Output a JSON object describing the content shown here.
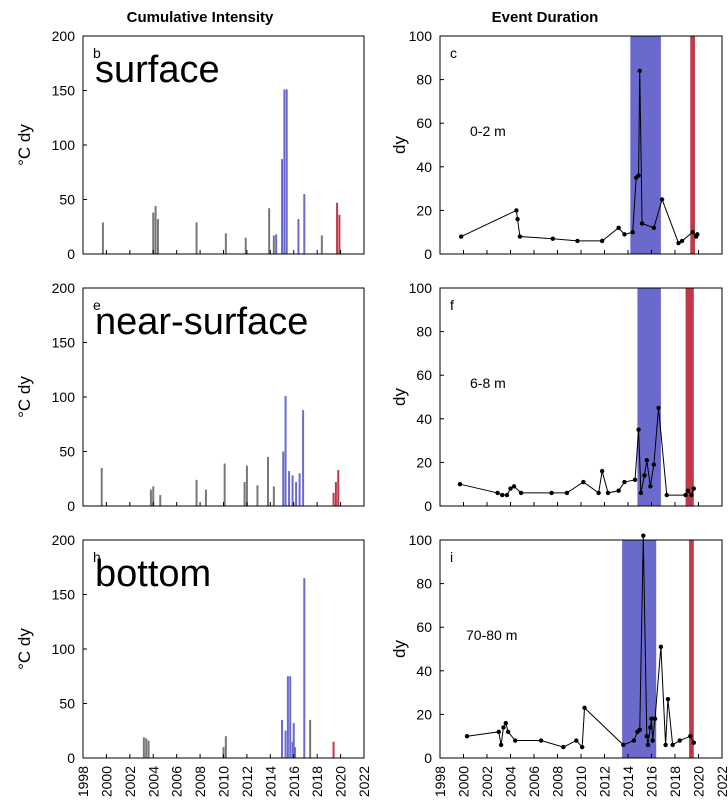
{
  "colors": {
    "marine_heatwave_blue": "#6a6acd",
    "marine_heatwave_red": "#c0394b",
    "black": "#000000",
    "gray": "#777777"
  },
  "column_titles": {
    "left": "Cumulative Intensity",
    "right": "Event Duration"
  },
  "x_tick_labels": [
    "1998",
    "2000",
    "2002",
    "2004",
    "2006",
    "2008",
    "2010",
    "2012",
    "2014",
    "2016",
    "2018",
    "2020",
    "2022"
  ],
  "chart_data": [
    {
      "type": "bar",
      "panel": "b",
      "big_label": "surface",
      "ylabel": "°C dy",
      "ylim": [
        0,
        200
      ],
      "yticks": [
        0,
        50,
        100,
        150,
        200
      ],
      "xlim": [
        1998,
        2022
      ],
      "bars": [
        {
          "x": 1999.7,
          "v": 29,
          "c": "gray"
        },
        {
          "x": 2004.0,
          "v": 38,
          "c": "gray"
        },
        {
          "x": 2004.2,
          "v": 44,
          "c": "gray"
        },
        {
          "x": 2004.4,
          "v": 32,
          "c": "gray"
        },
        {
          "x": 2007.7,
          "v": 29,
          "c": "gray"
        },
        {
          "x": 2010.2,
          "v": 19,
          "c": "gray"
        },
        {
          "x": 2011.9,
          "v": 15,
          "c": "gray"
        },
        {
          "x": 2013.9,
          "v": 42,
          "c": "gray"
        },
        {
          "x": 2014.3,
          "v": 17,
          "c": "gray"
        },
        {
          "x": 2014.5,
          "v": 18,
          "c": "blue"
        },
        {
          "x": 2015.0,
          "v": 87,
          "c": "blue"
        },
        {
          "x": 2015.2,
          "v": 151,
          "c": "blue"
        },
        {
          "x": 2015.4,
          "v": 151,
          "c": "blue"
        },
        {
          "x": 2016.4,
          "v": 32,
          "c": "blue"
        },
        {
          "x": 2016.9,
          "v": 55,
          "c": "blue"
        },
        {
          "x": 2018.4,
          "v": 17,
          "c": "gray"
        },
        {
          "x": 2019.7,
          "v": 47,
          "c": "red"
        },
        {
          "x": 2019.9,
          "v": 36,
          "c": "red"
        }
      ]
    },
    {
      "type": "line",
      "panel": "c",
      "depth": "0-2 m",
      "ylabel": "dy",
      "ylim": [
        0,
        100
      ],
      "yticks": [
        0,
        20,
        40,
        60,
        80,
        100
      ],
      "xlim": [
        1998,
        2022
      ],
      "shade_blue": [
        2014.2,
        2016.8
      ],
      "shade_red": [
        2019.3,
        2019.7
      ],
      "x": [
        1999.8,
        2004.5,
        2004.6,
        2004.8,
        2007.6,
        2009.7,
        2011.8,
        2013.2,
        2013.7,
        2014.4,
        2014.7,
        2014.9,
        2015.0,
        2015.2,
        2016.2,
        2016.9,
        2018.3,
        2018.6,
        2019.5,
        2019.8,
        2019.9
      ],
      "y": [
        8,
        20,
        16,
        8,
        7,
        6,
        6,
        12,
        9,
        10,
        35,
        36,
        84,
        14,
        12,
        25,
        5,
        6,
        10,
        8,
        9
      ]
    },
    {
      "type": "bar",
      "panel": "e",
      "big_label": "near-surface",
      "ylabel": "°C dy",
      "ylim": [
        0,
        200
      ],
      "yticks": [
        0,
        50,
        100,
        150,
        200
      ],
      "xlim": [
        1998,
        2022
      ],
      "bars": [
        {
          "x": 1999.6,
          "v": 35,
          "c": "gray"
        },
        {
          "x": 2003.8,
          "v": 15,
          "c": "gray"
        },
        {
          "x": 2004.0,
          "v": 18,
          "c": "gray"
        },
        {
          "x": 2004.6,
          "v": 10,
          "c": "gray"
        },
        {
          "x": 2007.7,
          "v": 24,
          "c": "gray"
        },
        {
          "x": 2008.5,
          "v": 15,
          "c": "gray"
        },
        {
          "x": 2010.1,
          "v": 39,
          "c": "gray"
        },
        {
          "x": 2011.8,
          "v": 22,
          "c": "gray"
        },
        {
          "x": 2012.0,
          "v": 37,
          "c": "gray"
        },
        {
          "x": 2012.9,
          "v": 19,
          "c": "gray"
        },
        {
          "x": 2013.8,
          "v": 45,
          "c": "gray"
        },
        {
          "x": 2014.3,
          "v": 18,
          "c": "gray"
        },
        {
          "x": 2015.1,
          "v": 50,
          "c": "blue"
        },
        {
          "x": 2015.3,
          "v": 101,
          "c": "blue"
        },
        {
          "x": 2015.6,
          "v": 32,
          "c": "blue"
        },
        {
          "x": 2015.9,
          "v": 28,
          "c": "blue"
        },
        {
          "x": 2016.2,
          "v": 22,
          "c": "blue"
        },
        {
          "x": 2016.5,
          "v": 30,
          "c": "blue"
        },
        {
          "x": 2016.8,
          "v": 88,
          "c": "blue"
        },
        {
          "x": 2019.4,
          "v": 12,
          "c": "red"
        },
        {
          "x": 2019.6,
          "v": 22,
          "c": "red"
        },
        {
          "x": 2019.8,
          "v": 33,
          "c": "red"
        }
      ]
    },
    {
      "type": "line",
      "panel": "f",
      "depth": "6-8 m",
      "ylabel": "dy",
      "ylim": [
        0,
        100
      ],
      "yticks": [
        0,
        20,
        40,
        60,
        80,
        100
      ],
      "xlim": [
        1998,
        2022
      ],
      "shade_blue": [
        2014.8,
        2016.8
      ],
      "shade_red": [
        2018.9,
        2019.6
      ],
      "x": [
        1999.7,
        2002.9,
        2003.3,
        2003.7,
        2004.0,
        2004.3,
        2004.9,
        2007.5,
        2008.8,
        2010.2,
        2011.5,
        2011.8,
        2012.3,
        2013.2,
        2013.7,
        2014.6,
        2014.9,
        2015.1,
        2015.4,
        2015.6,
        2015.9,
        2016.2,
        2016.6,
        2017.3,
        2018.9,
        2019.1,
        2019.4,
        2019.6
      ],
      "y": [
        10,
        6,
        5,
        5,
        8,
        9,
        6,
        6,
        6,
        11,
        6,
        16,
        6,
        7,
        11,
        12,
        35,
        6,
        14,
        21,
        9,
        19,
        45,
        5,
        5,
        7,
        5,
        8
      ]
    },
    {
      "type": "bar",
      "panel": "h",
      "big_label": "bottom",
      "ylabel": "°C dy",
      "ylim": [
        0,
        200
      ],
      "yticks": [
        0,
        50,
        100,
        150,
        200
      ],
      "xlim": [
        1998,
        2022
      ],
      "bars": [
        {
          "x": 2003.2,
          "v": 19,
          "c": "gray"
        },
        {
          "x": 2003.4,
          "v": 18,
          "c": "gray"
        },
        {
          "x": 2003.6,
          "v": 16,
          "c": "gray"
        },
        {
          "x": 2010.0,
          "v": 10,
          "c": "gray"
        },
        {
          "x": 2010.2,
          "v": 20,
          "c": "gray"
        },
        {
          "x": 2015.0,
          "v": 35,
          "c": "blue"
        },
        {
          "x": 2015.3,
          "v": 25,
          "c": "blue"
        },
        {
          "x": 2015.5,
          "v": 75,
          "c": "blue"
        },
        {
          "x": 2015.7,
          "v": 75,
          "c": "blue"
        },
        {
          "x": 2015.9,
          "v": 15,
          "c": "blue"
        },
        {
          "x": 2016.0,
          "v": 32,
          "c": "blue"
        },
        {
          "x": 2016.1,
          "v": 10,
          "c": "blue"
        },
        {
          "x": 2016.9,
          "v": 165,
          "c": "blue"
        },
        {
          "x": 2017.4,
          "v": 35,
          "c": "gray"
        },
        {
          "x": 2019.4,
          "v": 15,
          "c": "red"
        }
      ]
    },
    {
      "type": "line",
      "panel": "i",
      "depth": "70-80 m",
      "ylabel": "dy",
      "ylim": [
        0,
        100
      ],
      "yticks": [
        0,
        20,
        40,
        60,
        80,
        100
      ],
      "xlim": [
        1998,
        2022
      ],
      "shade_blue": [
        2013.5,
        2016.4
      ],
      "shade_red": [
        2019.2,
        2019.6
      ],
      "x": [
        2000.3,
        2003.0,
        2003.2,
        2003.4,
        2003.6,
        2003.8,
        2004.4,
        2006.6,
        2008.5,
        2009.6,
        2010.1,
        2010.3,
        2013.6,
        2014.5,
        2014.8,
        2015.0,
        2015.3,
        2015.6,
        2015.7,
        2015.9,
        2016.0,
        2016.1,
        2016.3,
        2016.8,
        2017.2,
        2017.4,
        2017.8,
        2018.4,
        2019.3,
        2019.6
      ],
      "y": [
        10,
        12,
        6,
        14,
        16,
        12,
        8,
        8,
        5,
        8,
        5,
        23,
        6,
        8,
        12,
        13,
        102,
        10,
        6,
        14,
        18,
        8,
        18,
        51,
        6,
        27,
        6,
        8,
        10,
        7
      ]
    }
  ]
}
